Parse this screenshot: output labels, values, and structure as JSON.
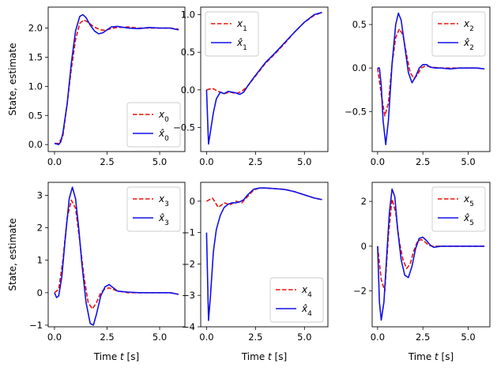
{
  "colors": {
    "true_state": "#e8120c",
    "estimate": "#1010e8"
  },
  "chart_data": [
    {
      "type": "line",
      "ylabel": "State, estimate",
      "xlabel": "",
      "xlim": [
        -0.3,
        6.2
      ],
      "ylim": [
        -0.12,
        2.36
      ],
      "xticks": [
        0.0,
        2.5,
        5.0
      ],
      "xtick_labels": [
        "0.0",
        "2.5",
        "5.0"
      ],
      "yticks": [
        0.0,
        0.5,
        1.0,
        1.5,
        2.0
      ],
      "ytick_labels": [
        "0.0",
        "0.5",
        "1.0",
        "1.5",
        "2.0"
      ],
      "legend": "lower-right",
      "series": [
        {
          "name": "x_0",
          "style": "dashed",
          "color": "#e8120c",
          "x": [
            0,
            0.2,
            0.4,
            0.6,
            0.8,
            1.0,
            1.2,
            1.4,
            1.6,
            1.8,
            2.0,
            2.2,
            2.4,
            2.6,
            2.8,
            3.0,
            3.5,
            4.0,
            4.5,
            5.0,
            5.5,
            5.9
          ],
          "y": [
            0.02,
            0.02,
            0.15,
            0.7,
            1.3,
            1.8,
            2.08,
            2.14,
            2.1,
            2.04,
            2.0,
            1.97,
            1.96,
            1.98,
            2.0,
            2.01,
            2.02,
            2.0,
            2.0,
            2.0,
            2.0,
            1.98
          ]
        },
        {
          "name": "x̂_0",
          "style": "solid",
          "color": "#1010e8",
          "x": [
            0,
            0.2,
            0.3,
            0.4,
            0.6,
            0.8,
            1.0,
            1.2,
            1.35,
            1.5,
            1.7,
            1.9,
            2.1,
            2.3,
            2.5,
            2.7,
            3.0,
            3.5,
            4.0,
            4.5,
            5.0,
            5.5,
            5.9
          ],
          "y": [
            0.02,
            0.0,
            0.05,
            0.2,
            0.7,
            1.4,
            1.95,
            2.2,
            2.23,
            2.18,
            2.05,
            1.95,
            1.9,
            1.92,
            1.97,
            2.02,
            2.03,
            2.0,
            1.99,
            2.01,
            2.0,
            2.0,
            1.97
          ]
        }
      ]
    },
    {
      "type": "line",
      "ylabel": "",
      "xlabel": "",
      "xlim": [
        -0.3,
        6.2
      ],
      "ylim": [
        -0.82,
        1.1
      ],
      "xticks": [
        0.0,
        2.5,
        5.0
      ],
      "xtick_labels": [
        "0.0",
        "2.5",
        "5.0"
      ],
      "yticks": [
        -0.5,
        0.0,
        0.5,
        1.0
      ],
      "ytick_labels": [
        "−0.5",
        "0.0",
        "0.5",
        "1.0"
      ],
      "legend": "upper-left",
      "series": [
        {
          "name": "x_1",
          "style": "dashed",
          "color": "#e8120c",
          "x": [
            0,
            0.3,
            0.6,
            0.9,
            1.2,
            1.5,
            1.8,
            2.1,
            2.4,
            2.7,
            3.0,
            3.5,
            4.0,
            4.5,
            5.0,
            5.5,
            5.9
          ],
          "y": [
            0.0,
            0.02,
            -0.02,
            -0.05,
            -0.03,
            -0.05,
            -0.02,
            0.05,
            0.15,
            0.25,
            0.35,
            0.48,
            0.62,
            0.77,
            0.9,
            0.99,
            1.03
          ]
        },
        {
          "name": "x̂_1",
          "style": "solid",
          "color": "#1010e8",
          "x": [
            0,
            0.1,
            0.2,
            0.35,
            0.5,
            0.7,
            0.9,
            1.1,
            1.3,
            1.5,
            1.7,
            1.9,
            2.1,
            2.4,
            2.7,
            3.0,
            3.5,
            4.0,
            4.5,
            5.0,
            5.5,
            5.9
          ],
          "y": [
            0.0,
            -0.72,
            -0.55,
            -0.3,
            -0.12,
            -0.03,
            -0.05,
            -0.02,
            -0.03,
            -0.04,
            -0.06,
            -0.03,
            0.05,
            0.16,
            0.26,
            0.36,
            0.49,
            0.63,
            0.77,
            0.9,
            1.0,
            1.03
          ]
        }
      ]
    },
    {
      "type": "line",
      "ylabel": "",
      "xlabel": "",
      "xlim": [
        -0.3,
        6.2
      ],
      "ylim": [
        -0.96,
        0.7
      ],
      "xticks": [
        0.0,
        2.5,
        5.0
      ],
      "xtick_labels": [
        "0.0",
        "2.5",
        "5.0"
      ],
      "yticks": [
        -0.5,
        0.0,
        0.5
      ],
      "ytick_labels": [
        "−0.5",
        "0.0",
        "0.5"
      ],
      "legend": "upper-right",
      "series": [
        {
          "name": "x_2",
          "style": "dashed",
          "color": "#e8120c",
          "x": [
            0,
            0.2,
            0.4,
            0.6,
            0.8,
            1.0,
            1.2,
            1.4,
            1.6,
            1.8,
            2.0,
            2.2,
            2.4,
            2.6,
            2.8,
            3.0,
            3.5,
            4.0,
            4.5,
            5.0,
            5.5,
            5.9
          ],
          "y": [
            0.0,
            -0.3,
            -0.55,
            -0.4,
            0.05,
            0.35,
            0.45,
            0.38,
            0.15,
            -0.05,
            -0.12,
            -0.08,
            0.0,
            0.02,
            0.02,
            0.01,
            0.0,
            0.0,
            0.0,
            0.0,
            0.0,
            -0.01
          ]
        },
        {
          "name": "x̂_2",
          "style": "solid",
          "color": "#1010e8",
          "x": [
            0,
            0.1,
            0.2,
            0.3,
            0.45,
            0.6,
            0.8,
            1.0,
            1.15,
            1.3,
            1.5,
            1.7,
            1.9,
            2.1,
            2.3,
            2.5,
            2.7,
            2.9,
            3.2,
            3.5,
            4.0,
            4.5,
            5.0,
            5.5,
            5.9
          ],
          "y": [
            0.0,
            0.0,
            -0.2,
            -0.6,
            -0.88,
            -0.6,
            0.05,
            0.5,
            0.63,
            0.55,
            0.25,
            -0.05,
            -0.17,
            -0.1,
            0.0,
            0.04,
            0.04,
            0.01,
            0.0,
            0.0,
            -0.01,
            0.0,
            0.0,
            0.0,
            -0.01
          ]
        }
      ]
    },
    {
      "type": "line",
      "ylabel": "State, estimate",
      "xlabel": "Time t [s]",
      "xlim": [
        -0.3,
        6.2
      ],
      "ylim": [
        -1.05,
        3.4
      ],
      "xticks": [
        0.0,
        2.5,
        5.0
      ],
      "xtick_labels": [
        "0.0",
        "2.5",
        "5.0"
      ],
      "yticks": [
        -1,
        0,
        1,
        2,
        3
      ],
      "ytick_labels": [
        "−1",
        "0",
        "1",
        "2",
        "3"
      ],
      "legend": "upper-right",
      "series": [
        {
          "name": "x_3",
          "style": "dashed",
          "color": "#e8120c",
          "x": [
            0,
            0.2,
            0.4,
            0.6,
            0.8,
            1.0,
            1.2,
            1.4,
            1.6,
            1.8,
            2.0,
            2.2,
            2.4,
            2.6,
            2.8,
            3.0,
            3.5,
            4.0,
            4.5,
            5.0,
            5.5,
            5.9
          ],
          "y": [
            0.0,
            0.1,
            1.0,
            2.3,
            2.85,
            2.6,
            1.6,
            0.5,
            -0.3,
            -0.5,
            -0.3,
            0.0,
            0.12,
            0.15,
            0.1,
            0.05,
            0.0,
            0.0,
            0.0,
            0.0,
            0.0,
            -0.05
          ]
        },
        {
          "name": "x̂_3",
          "style": "solid",
          "color": "#1010e8",
          "x": [
            0,
            0.1,
            0.2,
            0.35,
            0.5,
            0.7,
            0.85,
            1.0,
            1.15,
            1.3,
            1.5,
            1.7,
            1.85,
            2.0,
            2.2,
            2.4,
            2.6,
            2.8,
            3.0,
            3.5,
            4.0,
            4.5,
            5.0,
            5.5,
            5.9
          ],
          "y": [
            0.0,
            -0.15,
            -0.1,
            0.5,
            1.6,
            2.9,
            3.25,
            2.9,
            2.0,
            0.9,
            -0.3,
            -0.95,
            -1.0,
            -0.65,
            -0.1,
            0.18,
            0.25,
            0.15,
            0.05,
            0.02,
            0.0,
            0.0,
            0.0,
            0.0,
            -0.05
          ]
        }
      ]
    },
    {
      "type": "line",
      "ylabel": "",
      "xlabel": "Time t [s]",
      "xlim": [
        -0.3,
        6.2
      ],
      "ylim": [
        -4.0,
        0.6
      ],
      "xticks": [
        0.0,
        2.5,
        5.0
      ],
      "xtick_labels": [
        "0.0",
        "2.5",
        "5.0"
      ],
      "yticks": [
        -4,
        -3,
        -2,
        -1,
        0
      ],
      "ytick_labels": [
        "−4",
        "−3",
        "−2",
        "−1",
        "0"
      ],
      "legend": "lower-right",
      "series": [
        {
          "name": "x_4",
          "style": "dashed",
          "color": "#e8120c",
          "x": [
            0,
            0.3,
            0.6,
            0.9,
            1.2,
            1.5,
            1.8,
            2.1,
            2.4,
            2.7,
            3.0,
            3.5,
            4.0,
            4.5,
            5.0,
            5.5,
            5.9
          ],
          "y": [
            0.0,
            0.1,
            -0.2,
            -0.05,
            -0.12,
            0.0,
            -0.05,
            0.15,
            0.35,
            0.42,
            0.42,
            0.4,
            0.38,
            0.3,
            0.2,
            0.1,
            0.05
          ]
        },
        {
          "name": "x̂_4",
          "style": "solid",
          "color": "#1010e8",
          "x": [
            0,
            0.1,
            0.2,
            0.35,
            0.5,
            0.7,
            0.9,
            1.1,
            1.3,
            1.5,
            1.7,
            1.9,
            2.1,
            2.4,
            2.7,
            3.0,
            3.5,
            4.0,
            4.5,
            5.0,
            5.5,
            5.9
          ],
          "y": [
            -1.0,
            -3.8,
            -3.0,
            -1.6,
            -0.9,
            -0.45,
            -0.2,
            -0.1,
            -0.05,
            -0.05,
            -0.02,
            0.05,
            0.2,
            0.38,
            0.42,
            0.42,
            0.4,
            0.37,
            0.3,
            0.2,
            0.1,
            0.05
          ]
        }
      ]
    },
    {
      "type": "line",
      "ylabel": "",
      "xlabel": "Time t [s]",
      "xlim": [
        -0.3,
        6.2
      ],
      "ylim": [
        -3.6,
        2.85
      ],
      "xticks": [
        0.0,
        2.5,
        5.0
      ],
      "xtick_labels": [
        "0.0",
        "2.5",
        "5.0"
      ],
      "yticks": [
        -2,
        0,
        2
      ],
      "ytick_labels": [
        "−2",
        "0",
        "2"
      ],
      "legend": "upper-right",
      "series": [
        {
          "name": "x_5",
          "style": "dashed",
          "color": "#e8120c",
          "x": [
            0,
            0.2,
            0.4,
            0.6,
            0.8,
            1.0,
            1.2,
            1.4,
            1.6,
            1.8,
            2.0,
            2.2,
            2.4,
            2.6,
            2.8,
            3.0,
            3.5,
            4.0,
            4.5,
            5.0,
            5.5,
            5.9
          ],
          "y": [
            0.0,
            -1.5,
            -2.0,
            0.5,
            2.1,
            1.5,
            0.2,
            -0.6,
            -1.0,
            -0.8,
            -0.2,
            0.2,
            0.3,
            0.2,
            0.05,
            0.0,
            0.0,
            0.0,
            0.0,
            0.0,
            0.0,
            0.0
          ]
        },
        {
          "name": "x̂_5",
          "style": "solid",
          "color": "#1010e8",
          "x": [
            0,
            0.1,
            0.2,
            0.35,
            0.5,
            0.65,
            0.8,
            0.95,
            1.1,
            1.3,
            1.5,
            1.7,
            1.9,
            2.1,
            2.3,
            2.5,
            2.7,
            2.9,
            3.1,
            3.5,
            4.0,
            4.5,
            5.0,
            5.5,
            5.9
          ],
          "y": [
            0.0,
            -2.5,
            -3.3,
            -2.5,
            -0.5,
            1.5,
            2.55,
            2.2,
            0.8,
            -0.6,
            -1.3,
            -1.4,
            -0.9,
            -0.1,
            0.35,
            0.4,
            0.25,
            0.05,
            -0.05,
            0.0,
            0.0,
            0.0,
            0.0,
            0.0,
            0.0
          ]
        }
      ]
    }
  ]
}
